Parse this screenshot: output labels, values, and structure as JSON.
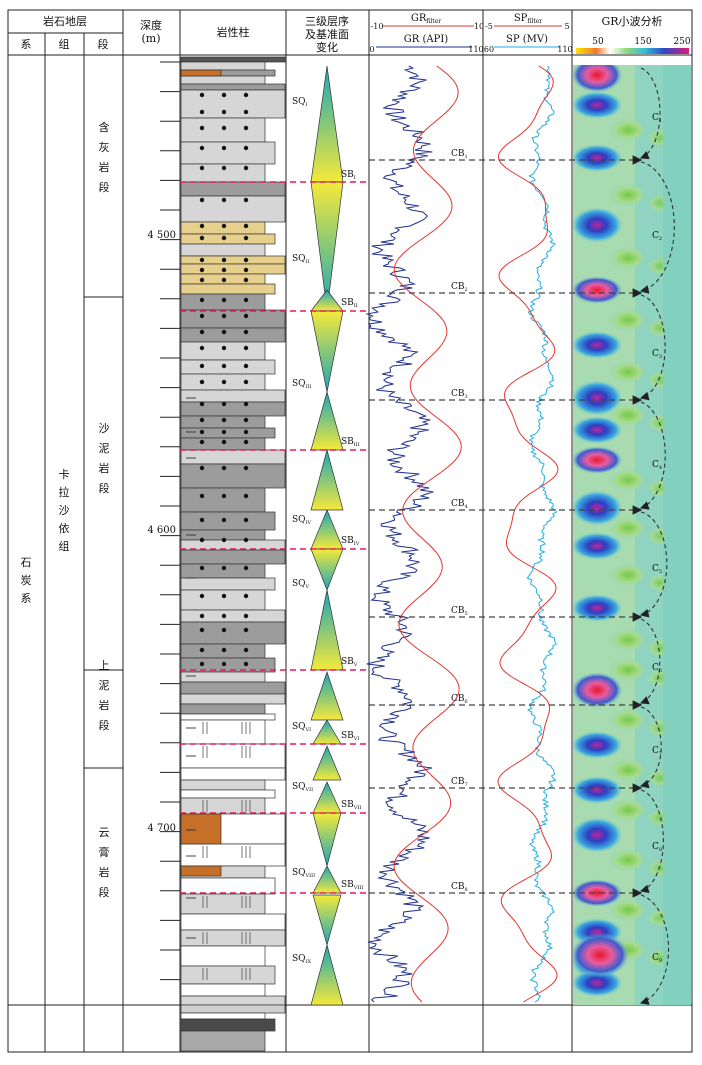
{
  "header": {
    "strat_group": "岩石地层",
    "xi": "系",
    "zu": "组",
    "duan": "段",
    "depth_label": "深度",
    "depth_unit": "(m)",
    "lith_label": "岩性柱",
    "seq_label_lines": [
      "三级层序",
      "及基准面",
      "变化"
    ],
    "gr_filter": "GR",
    "gr_filter_sub": "filter",
    "gr_filter_left": "-10",
    "gr_filter_right": "10",
    "gr_api": "GR (API)",
    "gr_api_left": "0",
    "gr_api_right": "110",
    "sp_filter": "SP",
    "sp_filter_sub": "filter",
    "sp_filter_left": "-5",
    "sp_filter_right": "5",
    "sp_mv": "SP (MV)",
    "sp_mv_left": "60",
    "sp_mv_right": "110",
    "wavelet_title": "GR小波分析",
    "wavelet_ticks": [
      "50",
      "150",
      "250"
    ]
  },
  "strat": {
    "system": "石炭系",
    "formation": "卡拉沙依组",
    "members": [
      "含灰岩段",
      "沙泥岩段",
      "上泥岩段",
      "云膏岩段"
    ]
  },
  "depths": [
    "4 500",
    "4 600",
    "4 700"
  ],
  "sequences": [
    {
      "main": "SQ",
      "sub": "I"
    },
    {
      "main": "SQ",
      "sub": "II"
    },
    {
      "main": "SQ",
      "sub": "III"
    },
    {
      "main": "SQ",
      "sub": "IV"
    },
    {
      "main": "SQ",
      "sub": "V"
    },
    {
      "main": "SQ",
      "sub": "VI"
    },
    {
      "main": "SQ",
      "sub": "VII"
    },
    {
      "main": "SQ",
      "sub": "VIII"
    },
    {
      "main": "SQ",
      "sub": "IX"
    }
  ],
  "boundaries": [
    {
      "main": "SB",
      "sub": "I"
    },
    {
      "main": "SB",
      "sub": "II"
    },
    {
      "main": "SB",
      "sub": "III"
    },
    {
      "main": "SB",
      "sub": "IV"
    },
    {
      "main": "SB",
      "sub": "V"
    },
    {
      "main": "SB",
      "sub": "VI"
    },
    {
      "main": "SB",
      "sub": "VII"
    },
    {
      "main": "SB",
      "sub": "VIII"
    }
  ],
  "cycle_boundaries": [
    {
      "main": "CB",
      "sub": "1"
    },
    {
      "main": "CB",
      "sub": "2"
    },
    {
      "main": "CB",
      "sub": "3"
    },
    {
      "main": "CB",
      "sub": "4"
    },
    {
      "main": "CB",
      "sub": "5"
    },
    {
      "main": "CB",
      "sub": "6"
    },
    {
      "main": "CB",
      "sub": "7"
    },
    {
      "main": "CB",
      "sub": "8"
    }
  ],
  "cycles": [
    {
      "main": "C",
      "sub": "1"
    },
    {
      "main": "C",
      "sub": "2"
    },
    {
      "main": "C",
      "sub": "3"
    },
    {
      "main": "C",
      "sub": "4"
    },
    {
      "main": "C",
      "sub": "5"
    },
    {
      "main": "C",
      "sub": "6"
    },
    {
      "main": "C",
      "sub": "7"
    },
    {
      "main": "C",
      "sub": "8"
    },
    {
      "main": "C",
      "sub": "9"
    }
  ],
  "colors": {
    "line": "#222222",
    "gr_filter": "#e3342f",
    "gr_api": "#1f2f8f",
    "sp_mv": "#22aee6",
    "sb_dash": "#e8195a",
    "cb_dash": "#444444",
    "tri_top": "#f5e93a",
    "tri_bottom": "#1aa6b8",
    "wavelet_bg": "#8fd3c1",
    "lith_dark": "#9c9c9c",
    "lith_light": "#d6d6d6",
    "lith_tan": "#e7cf8d",
    "lith_brown": "#c56f28"
  }
}
